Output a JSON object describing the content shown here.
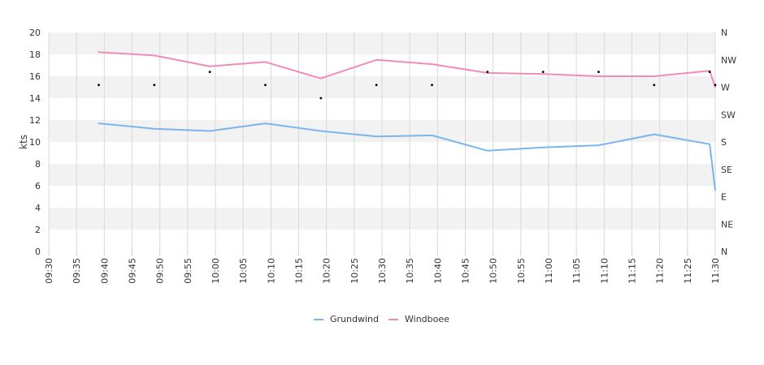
{
  "chart_data": {
    "type": "line",
    "ylabel": "kts",
    "ylim": [
      0,
      20
    ],
    "y_ticks": [
      "0",
      "2",
      "4",
      "6",
      "8",
      "10",
      "12",
      "14",
      "16",
      "18",
      "20"
    ],
    "x_ticks": [
      "09:30",
      "09:35",
      "09:40",
      "09:45",
      "09:50",
      "09:55",
      "10:00",
      "10:05",
      "10:10",
      "10:15",
      "10:20",
      "10:25",
      "10:30",
      "10:35",
      "10:40",
      "10:45",
      "10:50",
      "10:55",
      "11:00",
      "11:05",
      "11:10",
      "11:15",
      "11:20",
      "11:25",
      "11:30"
    ],
    "xlim": [
      "09:30",
      "11:30"
    ],
    "direction_ticks": [
      "N",
      "NE",
      "E",
      "SE",
      "S",
      "SW",
      "W",
      "NW",
      "N"
    ],
    "grid": true,
    "legend_position": "bottom",
    "series": [
      {
        "name": "Grundwind",
        "color": "#7cb5ec",
        "x": [
          "09:39",
          "09:49",
          "09:59",
          "10:09",
          "10:19",
          "10:29",
          "10:39",
          "10:49",
          "10:59",
          "11:09",
          "11:19",
          "11:29",
          "11:30"
        ],
        "values": [
          11.7,
          11.2,
          11.0,
          11.7,
          11.0,
          10.5,
          10.6,
          9.2,
          9.5,
          9.7,
          10.7,
          9.8,
          5.6
        ]
      },
      {
        "name": "Windboee",
        "color": "#f08cb8",
        "x": [
          "09:39",
          "09:49",
          "09:59",
          "10:09",
          "10:19",
          "10:29",
          "10:39",
          "10:49",
          "10:59",
          "11:09",
          "11:19",
          "11:29",
          "11:30"
        ],
        "values": [
          18.2,
          17.9,
          16.9,
          17.3,
          15.8,
          17.5,
          17.1,
          16.3,
          16.2,
          16.0,
          16.0,
          16.5,
          15.0
        ]
      }
    ],
    "direction_points": {
      "x": [
        "09:39",
        "09:49",
        "09:59",
        "10:09",
        "10:19",
        "10:29",
        "10:39",
        "10:49",
        "10:59",
        "11:09",
        "11:19",
        "11:29",
        "11:30"
      ],
      "values": [
        15.2,
        15.2,
        16.4,
        15.2,
        14.0,
        15.2,
        15.2,
        16.4,
        16.4,
        16.4,
        15.2,
        16.4,
        15.2
      ]
    }
  }
}
